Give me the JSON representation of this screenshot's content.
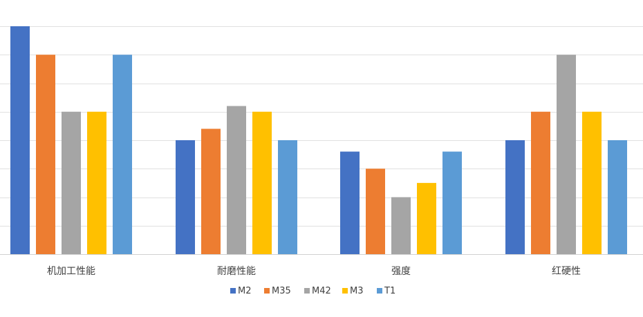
{
  "chart_data": {
    "type": "bar",
    "categories": [
      "机加工性能",
      "耐磨性能",
      "强度",
      "红硬性"
    ],
    "series": [
      {
        "name": "M2",
        "color": "#4472C4",
        "values": [
          4,
          2,
          1.8,
          2
        ]
      },
      {
        "name": "M35",
        "color": "#ED7D31",
        "values": [
          3.5,
          2.2,
          1.5,
          2.5
        ]
      },
      {
        "name": "M42",
        "color": "#A5A5A5",
        "values": [
          2.5,
          2.6,
          1,
          3.5
        ]
      },
      {
        "name": "M3",
        "color": "#FFC000",
        "values": [
          2.5,
          2.5,
          1.25,
          2.5
        ]
      },
      {
        "name": "T1",
        "color": "#5B9BD5",
        "values": [
          3.5,
          2,
          1.8,
          2
        ]
      }
    ],
    "ylim": [
      0,
      4
    ],
    "grid": true,
    "legend": "bottom-center"
  }
}
